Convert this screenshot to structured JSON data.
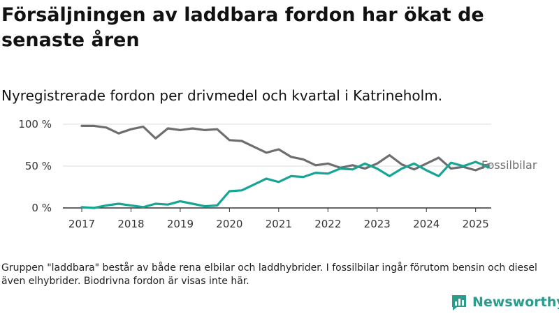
{
  "title": "Försäljningen av laddbara fordon har ökat de senaste åren",
  "subtitle": "Nyregistrerade fordon per drivmedel och kvartal i Katrineholm.",
  "footnote": "Gruppen \"laddbara\" består av både rena elbilar och laddhybrider. I fossilbilar ingår förutom bensin och diesel även elhybrider. Biodrivna fordon är visas inte här.",
  "brand": {
    "name": "Newsworthy"
  },
  "colors": {
    "fossil": "#6e6e72",
    "laddbara": "#15a594",
    "axis": "#333333",
    "grid": "#dddddd",
    "brand": "#2a9c8c"
  },
  "chart_data": {
    "type": "line",
    "title": "",
    "xlabel": "",
    "ylabel": "",
    "ylim": [
      0,
      100
    ],
    "xlim": [
      2017,
      2025.7
    ],
    "y_ticks": [
      0,
      50,
      100
    ],
    "y_tick_labels": [
      "0 %",
      "50 %",
      "100 %"
    ],
    "x_ticks": [
      2017,
      2018,
      2019,
      2020,
      2021,
      2022,
      2023,
      2024,
      2025
    ],
    "x_tick_labels": [
      "2017",
      "2018",
      "2019",
      "2020",
      "2021",
      "2022",
      "2023",
      "2024",
      "2025"
    ],
    "grid": "horizontal",
    "x": [
      2017.0,
      2017.25,
      2017.5,
      2017.75,
      2018.0,
      2018.25,
      2018.5,
      2018.75,
      2019.0,
      2019.25,
      2019.5,
      2019.75,
      2020.0,
      2020.25,
      2020.5,
      2020.75,
      2021.0,
      2021.25,
      2021.5,
      2021.75,
      2022.0,
      2022.25,
      2022.5,
      2022.75,
      2023.0,
      2023.25,
      2023.5,
      2023.75,
      2024.0,
      2024.25,
      2024.5,
      2024.75,
      2025.0,
      2025.25
    ],
    "series": [
      {
        "name": "Fossilbilar",
        "values": [
          98,
          98,
          96,
          89,
          94,
          97,
          83,
          95,
          93,
          95,
          93,
          94,
          81,
          80,
          73,
          66,
          70,
          61,
          58,
          51,
          53,
          48,
          51,
          47,
          53,
          63,
          52,
          46,
          53,
          60,
          47,
          49,
          45,
          51
        ]
      },
      {
        "name": "",
        "values": [
          1,
          0,
          3,
          5,
          3,
          1,
          5,
          4,
          8,
          5,
          2,
          3,
          20,
          21,
          28,
          35,
          31,
          38,
          37,
          42,
          41,
          47,
          46,
          53,
          47,
          38,
          47,
          53,
          45,
          38,
          54,
          50,
          55,
          49
        ]
      }
    ],
    "labeled_series": "Fossilbilar"
  }
}
